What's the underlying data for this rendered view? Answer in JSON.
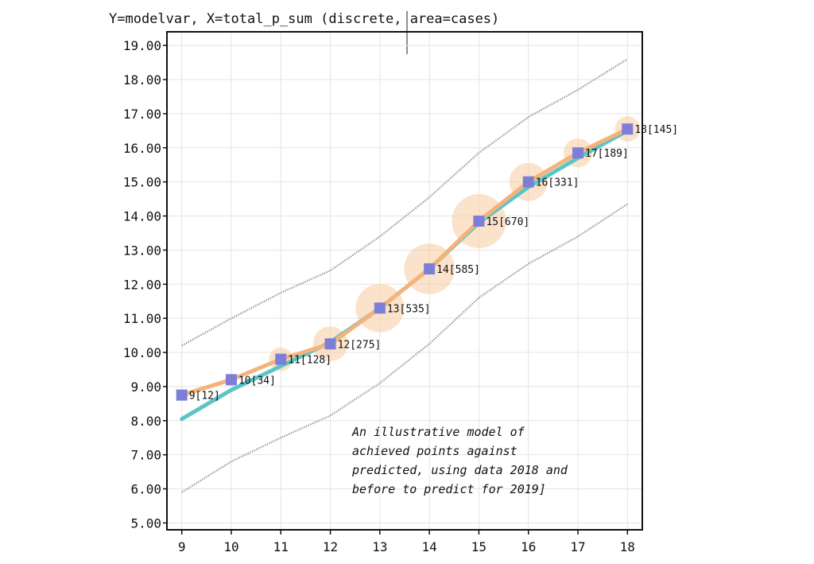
{
  "chart_data": {
    "type": "line",
    "title": "Y=modelvar, X=total_p_sum  (discrete, area=cases)",
    "xlabel": "",
    "ylabel": "",
    "x": [
      9,
      10,
      11,
      12,
      13,
      14,
      15,
      16,
      17,
      18
    ],
    "xlim": [
      8.7,
      18.3
    ],
    "ylim": [
      4.8,
      19.4
    ],
    "y_ticks": [
      5,
      6,
      7,
      8,
      9,
      10,
      11,
      12,
      13,
      14,
      15,
      16,
      17,
      18,
      19
    ],
    "y_tick_labels": [
      "5.00",
      "6.00",
      "7.00",
      "8.00",
      "9.00",
      "10.00",
      "11.00",
      "12.00",
      "13.00",
      "14.00",
      "15.00",
      "16.00",
      "17.00",
      "18.00",
      "19.00"
    ],
    "x_tick_labels": [
      "9",
      "10",
      "11",
      "12",
      "13",
      "14",
      "15",
      "16",
      "17",
      "18"
    ],
    "grid": true,
    "series": [
      {
        "role": "upper-band",
        "color": "#999999",
        "values": [
          10.2,
          11.0,
          11.75,
          12.4,
          13.4,
          14.55,
          15.85,
          16.9,
          17.7,
          18.6
        ]
      },
      {
        "role": "lower-band",
        "color": "#999999",
        "values": [
          5.9,
          6.8,
          7.5,
          8.15,
          9.1,
          10.25,
          11.6,
          12.6,
          13.4,
          14.35
        ]
      },
      {
        "role": "fit-line",
        "color": "#5bc5c5",
        "values": [
          8.05,
          8.9,
          9.6,
          10.3,
          11.3,
          12.45,
          13.8,
          14.85,
          15.7,
          16.5
        ]
      },
      {
        "role": "observed-line",
        "color": "#f5b27a",
        "values": [
          8.75,
          9.2,
          9.8,
          10.25,
          11.3,
          12.45,
          13.85,
          15.0,
          15.85,
          16.55
        ]
      }
    ],
    "points": {
      "color": "#7d7ed8",
      "bubble_color": "#f9cfa6",
      "y": [
        8.75,
        9.2,
        9.8,
        10.25,
        11.3,
        12.45,
        13.85,
        15.0,
        15.85,
        16.55
      ],
      "cases": [
        12,
        34,
        128,
        275,
        535,
        585,
        670,
        331,
        189,
        145
      ],
      "labels": [
        "9[12]",
        "10[34]",
        "11[128]",
        "12[275]",
        "13[535]",
        "14[585]",
        "15[670]",
        "16[331]",
        "17[189]",
        "18[145]"
      ]
    },
    "annotation": [
      "An illustrative model of",
      "achieved points against",
      "predicted, using data 2018 and",
      "before to predict for 2019]"
    ]
  }
}
